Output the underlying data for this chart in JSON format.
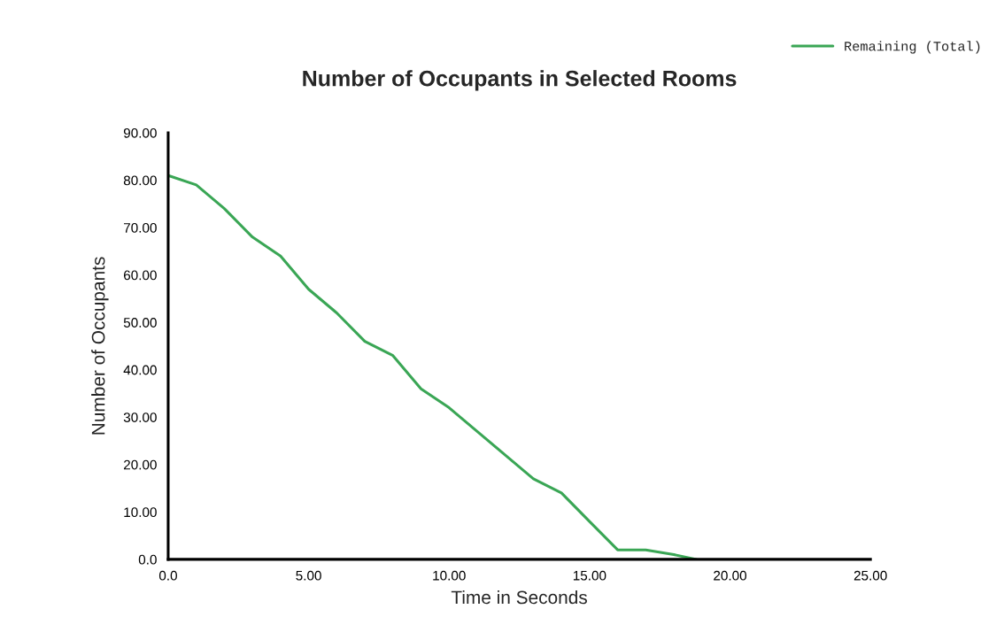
{
  "chart_data": {
    "type": "line",
    "title": "Number of Occupants in Selected Rooms",
    "xlabel": "Time in Seconds",
    "ylabel": "Number of Occupants",
    "x": [
      0,
      1,
      2,
      3,
      4,
      5,
      6,
      7,
      8,
      9,
      10,
      11,
      12,
      13,
      14,
      15,
      16,
      17,
      18,
      18.8
    ],
    "series": [
      {
        "name": "Remaining (Total)",
        "color": "#3aa655",
        "values": [
          81,
          79,
          74,
          68,
          64,
          57,
          52,
          46,
          43,
          36,
          32,
          27,
          22,
          17,
          14,
          8,
          2,
          2,
          1,
          0
        ]
      }
    ],
    "xlim": [
      0,
      25
    ],
    "xticks": [
      {
        "value": 0,
        "label": "0.0"
      },
      {
        "value": 5,
        "label": "5.00"
      },
      {
        "value": 10,
        "label": "10.00"
      },
      {
        "value": 15,
        "label": "15.00"
      },
      {
        "value": 20,
        "label": "20.00"
      },
      {
        "value": 25,
        "label": "25.00"
      }
    ],
    "ylim": [
      0,
      90
    ],
    "yticks": [
      {
        "value": 0,
        "label": "0.0"
      },
      {
        "value": 10,
        "label": "10.00"
      },
      {
        "value": 20,
        "label": "20.00"
      },
      {
        "value": 30,
        "label": "30.00"
      },
      {
        "value": 40,
        "label": "40.00"
      },
      {
        "value": 50,
        "label": "50.00"
      },
      {
        "value": 60,
        "label": "60.00"
      },
      {
        "value": 70,
        "label": "70.00"
      },
      {
        "value": 80,
        "label": "80.00"
      },
      {
        "value": 90,
        "label": "90.00"
      }
    ],
    "grid": false,
    "legend": "top right",
    "marker": "none",
    "line_style": "solid"
  }
}
